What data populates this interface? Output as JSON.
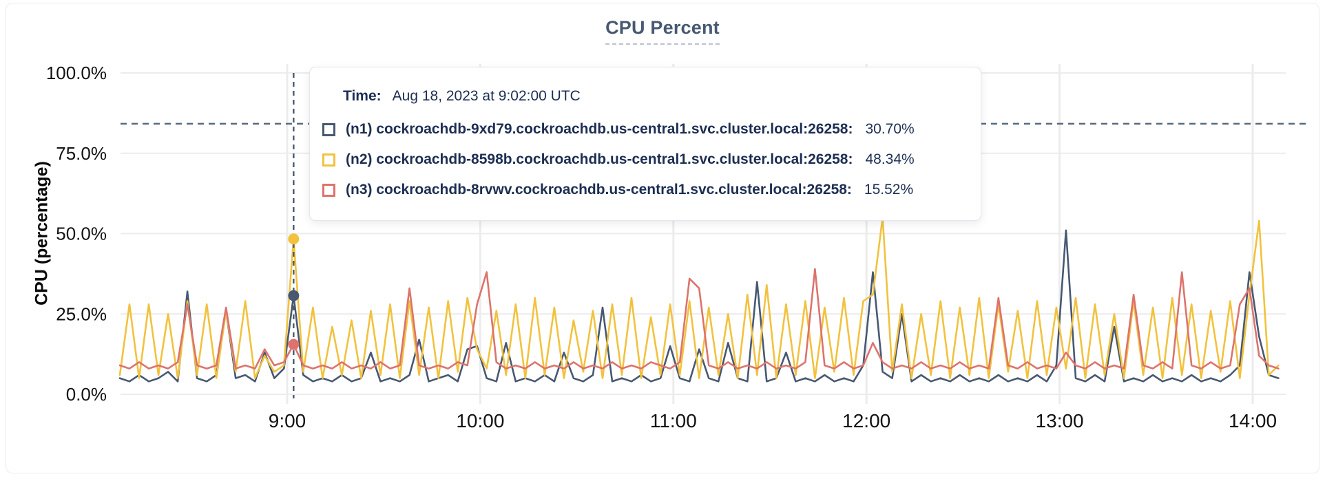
{
  "card": {
    "title": "CPU Percent"
  },
  "tooltip": {
    "time_label": "Time:",
    "time_value": "Aug 18, 2023 at 9:02:00 UTC",
    "rows": [
      {
        "name": "(n1) cockroachdb-9xd79.cockroachdb.us-central1.svc.cluster.local:26258:",
        "value": "30.70%",
        "color": "#475872"
      },
      {
        "name": "(n2) cockroachdb-8598b.cockroachdb.us-central1.svc.cluster.local:26258:",
        "value": "48.34%",
        "color": "#f2c23e"
      },
      {
        "name": "(n3) cockroachdb-8rvwv.cockroachdb.us-central1.svc.cluster.local:26258:",
        "value": "15.52%",
        "color": "#dd736c"
      }
    ]
  },
  "colors": {
    "title": "#475872",
    "gridline": "#ececec",
    "threshold_line": "#53687c",
    "hover_line": "#47596d",
    "tooltip_text": "#1c2e52"
  },
  "chart_data": {
    "type": "line",
    "title": "CPU Percent",
    "xlabel": "",
    "ylabel": "CPU (percentage)",
    "ylim": [
      0,
      100
    ],
    "grid": true,
    "legend_position": "tooltip",
    "y_ticks": [
      {
        "label": "0.0%",
        "value": 0
      },
      {
        "label": "25.0%",
        "value": 25
      },
      {
        "label": "50.0%",
        "value": 50
      },
      {
        "label": "75.0%",
        "value": 75
      },
      {
        "label": "100.0%",
        "value": 100
      }
    ],
    "x_ticks": [
      {
        "label": "9:00",
        "minute": 540
      },
      {
        "label": "10:00",
        "minute": 600
      },
      {
        "label": "11:00",
        "minute": 660
      },
      {
        "label": "12:00",
        "minute": 720
      },
      {
        "label": "13:00",
        "minute": 780
      },
      {
        "label": "14:00",
        "minute": 840
      }
    ],
    "x_start_min": 488,
    "x_step_min": 3,
    "x_start_label": "8:08",
    "x_end_label": "14:08",
    "threshold_line": {
      "value": 84.2,
      "style": "dashed"
    },
    "hover": {
      "time_minute": 542,
      "time_label": "9:02:00 UTC",
      "dot_values": [
        30.7,
        48.34,
        15.52
      ]
    },
    "series": [
      {
        "name": "(n1) cockroachdb-9xd79.cockroachdb.us-central1.svc.cluster.local:26258",
        "short": "n1",
        "color": "#475872",
        "values": [
          5,
          4,
          6,
          4,
          5,
          7,
          4,
          32,
          5,
          4,
          6,
          26,
          5,
          6,
          4,
          13,
          5,
          8,
          30.7,
          6,
          4,
          5,
          4,
          6,
          4,
          5,
          13,
          4,
          5,
          4,
          6,
          17,
          4,
          5,
          6,
          4,
          14,
          15,
          5,
          4,
          16,
          4,
          5,
          4,
          6,
          4,
          13,
          5,
          4,
          6,
          27,
          4,
          5,
          4,
          6,
          4,
          5,
          15,
          5,
          4,
          14,
          5,
          4,
          16,
          5,
          4,
          35,
          4,
          5,
          13,
          4,
          5,
          4,
          6,
          4,
          5,
          4,
          9,
          38,
          7,
          5,
          25,
          4,
          6,
          4,
          5,
          4,
          6,
          4,
          5,
          4,
          6,
          4,
          5,
          4,
          6,
          4,
          9,
          51,
          5,
          4,
          6,
          4,
          21,
          4,
          5,
          4,
          6,
          4,
          5,
          4,
          6,
          4,
          5,
          4,
          6,
          9,
          38,
          18,
          6,
          5
        ]
      },
      {
        "name": "(n2) cockroachdb-8598b.cockroachdb.us-central1.svc.cluster.local:26258",
        "short": "n2",
        "color": "#f2c23e",
        "values": [
          6,
          28,
          5,
          28,
          6,
          25,
          5,
          29,
          6,
          28,
          5,
          26,
          7,
          29,
          5,
          12,
          7,
          9,
          48.34,
          7,
          27,
          5,
          21,
          6,
          23,
          5,
          26,
          6,
          28,
          5,
          29,
          6,
          27,
          5,
          29,
          7,
          30,
          14,
          8,
          26,
          6,
          28,
          5,
          30,
          6,
          27,
          5,
          23,
          7,
          26,
          5,
          28,
          6,
          30,
          5,
          24,
          6,
          28,
          6,
          29,
          5,
          27,
          6,
          25,
          5,
          31,
          6,
          34,
          5,
          28,
          6,
          29,
          5,
          27,
          7,
          30,
          6,
          29,
          31,
          55,
          7,
          28,
          5,
          25,
          6,
          29,
          5,
          27,
          6,
          30,
          5,
          28,
          7,
          26,
          5,
          29,
          6,
          27,
          8,
          30,
          5,
          28,
          6,
          25,
          5,
          29,
          6,
          27,
          5,
          30,
          6,
          28,
          5,
          26,
          7,
          29,
          5,
          31,
          54,
          6,
          9
        ]
      },
      {
        "name": "(n3) cockroachdb-8rvwv.cockroachdb.us-central1.svc.cluster.local:26258",
        "short": "n3",
        "color": "#dd736c",
        "values": [
          9,
          8,
          10,
          8,
          9,
          8,
          10,
          28,
          9,
          8,
          9,
          27,
          8,
          9,
          8,
          14,
          9,
          10,
          15.52,
          9,
          8,
          9,
          8,
          10,
          8,
          9,
          8,
          10,
          8,
          9,
          33,
          9,
          8,
          9,
          8,
          10,
          9,
          28,
          38,
          10,
          8,
          9,
          8,
          10,
          8,
          9,
          8,
          10,
          8,
          9,
          8,
          10,
          8,
          9,
          8,
          10,
          9,
          8,
          10,
          36,
          33,
          9,
          8,
          10,
          8,
          9,
          8,
          10,
          8,
          9,
          8,
          10,
          39,
          9,
          8,
          10,
          8,
          9,
          16,
          10,
          8,
          9,
          8,
          10,
          8,
          9,
          8,
          10,
          8,
          9,
          8,
          30,
          9,
          8,
          10,
          8,
          9,
          8,
          13,
          9,
          8,
          10,
          8,
          9,
          8,
          31,
          9,
          8,
          10,
          8,
          38,
          9,
          8,
          10,
          8,
          9,
          28,
          33,
          12,
          9,
          8
        ]
      }
    ]
  }
}
